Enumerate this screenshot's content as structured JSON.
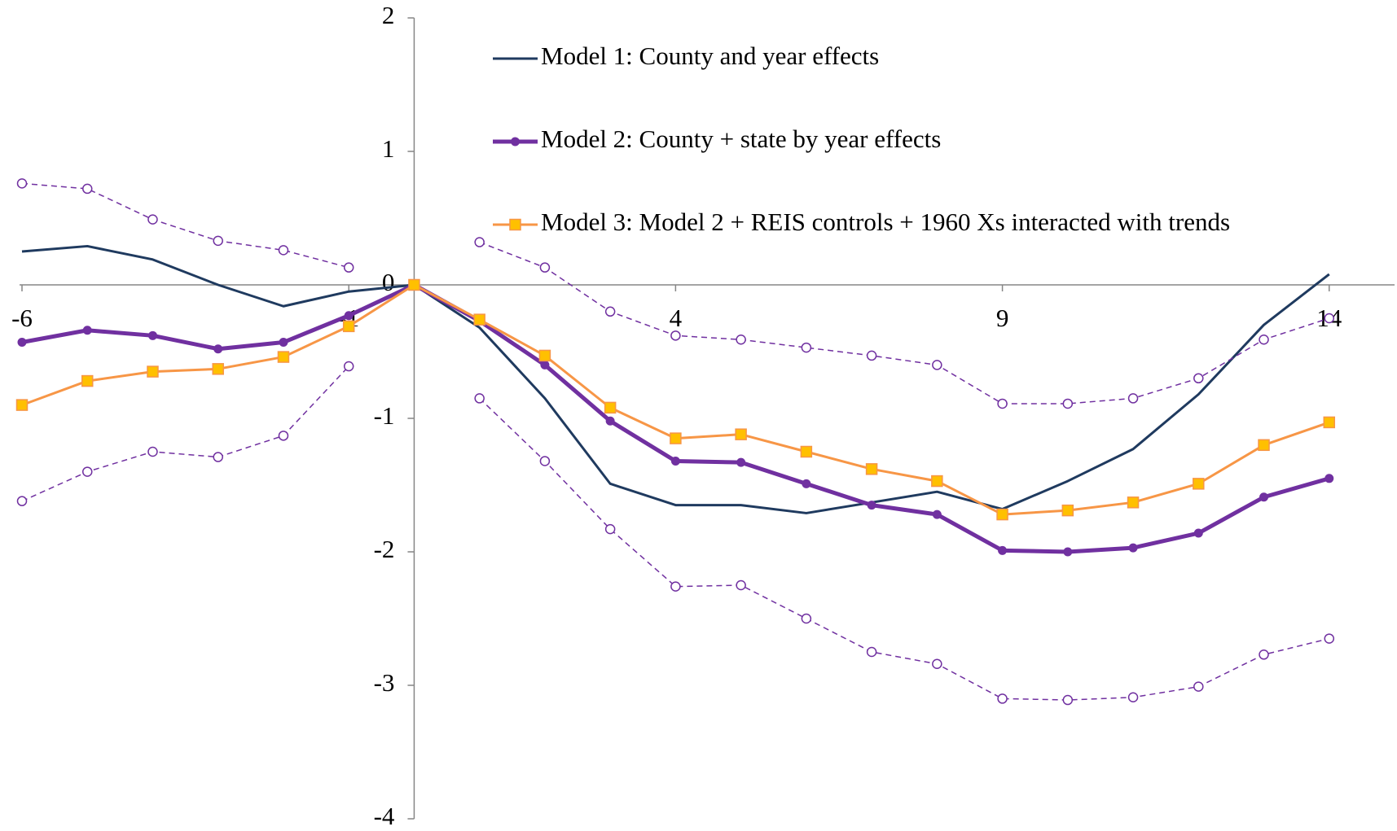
{
  "chart_data": {
    "type": "line",
    "x": [
      -6,
      -5,
      -4,
      -3,
      -2,
      -1,
      0,
      1,
      2,
      3,
      4,
      5,
      6,
      7,
      8,
      9,
      10,
      11,
      12,
      13,
      14
    ],
    "series": [
      {
        "name": "Model 1: County and year effects",
        "color": "#1f3a5f",
        "width": 3,
        "marker": "none",
        "dash": false,
        "values": [
          0.25,
          0.29,
          0.19,
          0.0,
          -0.16,
          -0.05,
          0,
          -0.32,
          -0.85,
          -1.49,
          -1.65,
          -1.65,
          -1.71,
          -1.63,
          -1.55,
          -1.68,
          -1.47,
          -1.23,
          -0.82,
          -0.3,
          0.08
        ]
      },
      {
        "name": "Model 2: County + state by year effects",
        "color": "#7030a0",
        "width": 5,
        "marker": "circle",
        "dash": false,
        "values": [
          -0.43,
          -0.34,
          -0.38,
          -0.48,
          -0.43,
          -0.23,
          0,
          -0.27,
          -0.6,
          -1.02,
          -1.32,
          -1.33,
          -1.49,
          -1.65,
          -1.72,
          -1.99,
          -2.0,
          -1.97,
          -1.86,
          -1.59,
          -1.45
        ]
      },
      {
        "name": "Model 3: Model 2 + REIS controls + 1960 Xs interacted with trends",
        "color": "#f79646",
        "marker_fill": "#ffc000",
        "width": 3,
        "marker": "square",
        "dash": false,
        "values": [
          -0.9,
          -0.72,
          -0.65,
          -0.63,
          -0.54,
          -0.31,
          0,
          -0.26,
          -0.53,
          -0.92,
          -1.15,
          -1.12,
          -1.25,
          -1.38,
          -1.47,
          -1.72,
          -1.69,
          -1.63,
          -1.49,
          -1.2,
          -1.03
        ]
      },
      {
        "color": "#7030a0",
        "width": 1.5,
        "marker": "hollow-circle",
        "dash": true,
        "values": [
          0.76,
          0.72,
          0.49,
          0.33,
          0.26,
          0.13,
          null,
          0.32,
          0.13,
          -0.2,
          -0.38,
          -0.41,
          -0.47,
          -0.53,
          -0.6,
          -0.89,
          -0.89,
          -0.85,
          -0.7,
          -0.41,
          -0.25
        ]
      },
      {
        "color": "#7030a0",
        "width": 1.5,
        "marker": "hollow-circle",
        "dash": true,
        "values": [
          -1.62,
          -1.4,
          -1.25,
          -1.29,
          -1.13,
          -0.61,
          null,
          -0.85,
          -1.32,
          -1.83,
          -2.26,
          -2.25,
          -2.5,
          -2.75,
          -2.84,
          -3.1,
          -3.11,
          -3.09,
          -3.01,
          -2.77,
          -2.65
        ]
      }
    ],
    "xlim": [
      -6,
      15
    ],
    "xticks": [
      -6,
      -1,
      4,
      9,
      14
    ],
    "ylim": [
      -4,
      2
    ],
    "yticks": [
      -4,
      -3,
      -2,
      -1,
      0,
      1,
      2
    ],
    "grid": false,
    "legend": "top-right"
  }
}
